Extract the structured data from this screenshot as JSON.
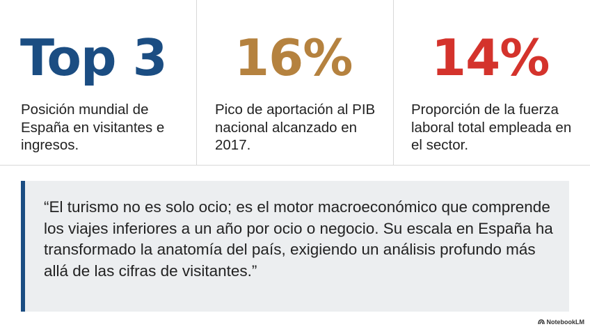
{
  "stats": [
    {
      "value": "Top 3",
      "description": "Posición mundial de España en visitantes e ingresos.",
      "color": "#1b4d82"
    },
    {
      "value": "16%",
      "description": "Pico de aportación al PIB nacional alcanzado en 2017.",
      "color": "#b5823f"
    },
    {
      "value": "14%",
      "description": "Proporción de la fuerza laboral total empleada en el sector.",
      "color": "#d4332c"
    }
  ],
  "quote": {
    "text": "“El turismo no es solo ocio; es el motor macroeconómico que comprende los viajes inferiores a un año por ocio o negocio. Su escala en España ha transformado la anatomía del país, exigiendo un análisis profundo más allá de las cifras de visitantes.”",
    "accent_color": "#1b4d82",
    "background_color": "#eceef0"
  },
  "branding": {
    "label": "NotebookLM",
    "icon": "notebooklm-logo-icon"
  }
}
